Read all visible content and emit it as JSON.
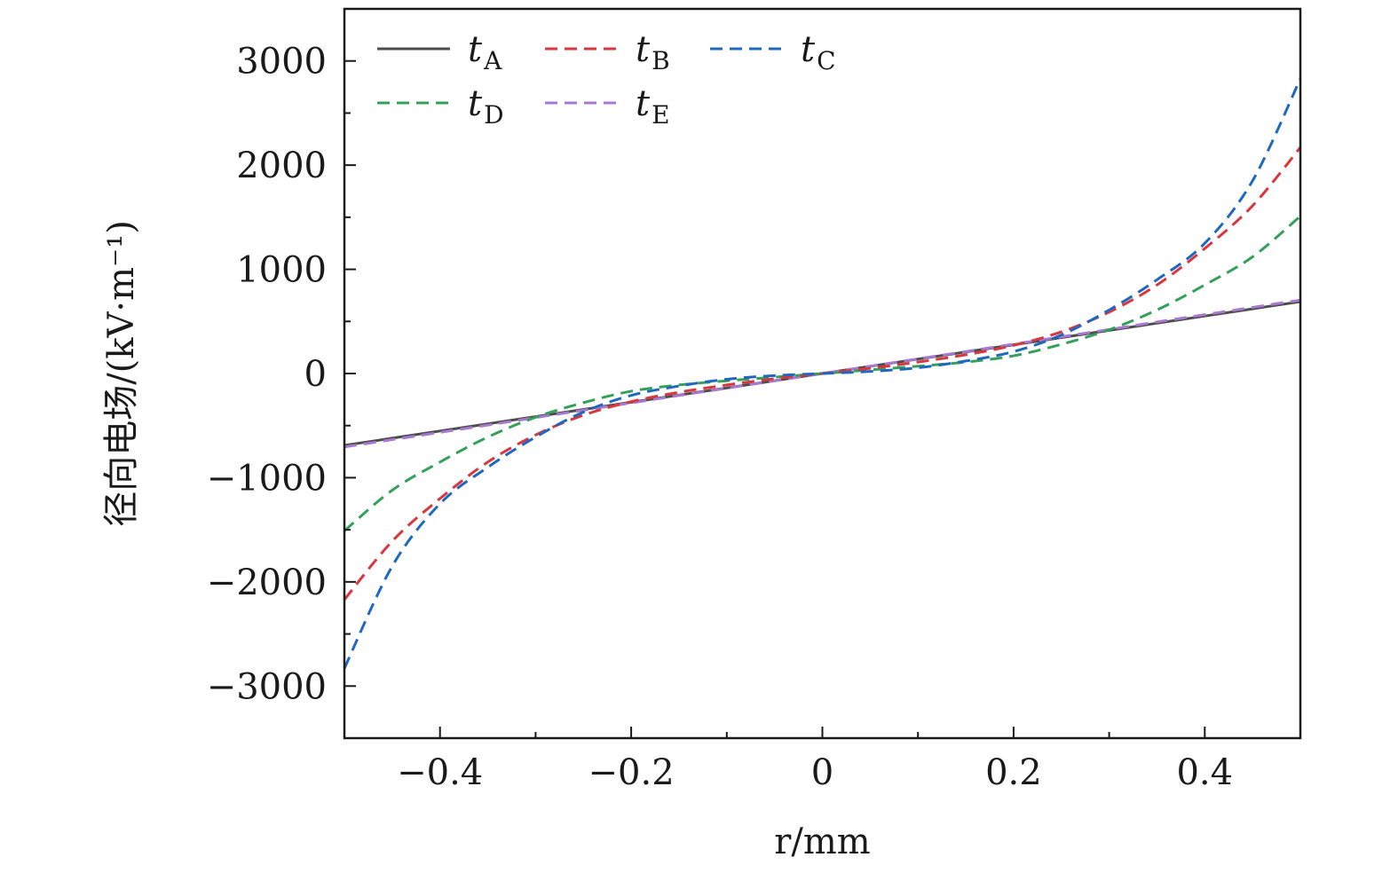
{
  "chart_data": {
    "type": "line",
    "title": "",
    "xlabel": "r/mm",
    "ylabel": "径向电场/(kV·m⁻¹)",
    "xlim": [
      -0.5,
      0.5
    ],
    "ylim": [
      -3500,
      3500
    ],
    "xticks": [
      -0.4,
      -0.2,
      0,
      0.2,
      0.4
    ],
    "xtick_labels": [
      "−0.4",
      "−0.2",
      "0",
      "0.2",
      "0.4"
    ],
    "yticks": [
      -3000,
      -2000,
      -1000,
      0,
      1000,
      2000,
      3000
    ],
    "ytick_labels": [
      "−3000",
      "−2000",
      "−1000",
      "0",
      "1000",
      "2000",
      "3000"
    ],
    "grid": false,
    "legend_position": "top-left",
    "x": [
      -0.5,
      -0.45,
      -0.4,
      -0.35,
      -0.3,
      -0.25,
      -0.2,
      -0.15,
      -0.1,
      -0.05,
      0,
      0.05,
      0.1,
      0.15,
      0.2,
      0.25,
      0.3,
      0.35,
      0.4,
      0.45,
      0.5
    ],
    "series": [
      {
        "name": "t",
        "subscript": "A",
        "color": "#4d4d4d",
        "dash": "solid",
        "values": [
          -690,
          -621,
          -552,
          -483,
          -414,
          -345,
          -276,
          -207,
          -138,
          -69,
          0,
          69,
          138,
          207,
          276,
          345,
          414,
          483,
          552,
          621,
          690
        ]
      },
      {
        "name": "t",
        "subscript": "B",
        "color": "#d9363e",
        "dash": "dashed",
        "values": [
          -2170,
          -1610,
          -1200,
          -850,
          -590,
          -400,
          -270,
          -180,
          -110,
          -50,
          0,
          50,
          110,
          180,
          270,
          400,
          590,
          850,
          1200,
          1610,
          2170
        ]
      },
      {
        "name": "t",
        "subscript": "C",
        "color": "#1f68c1",
        "dash": "dashed",
        "values": [
          -2830,
          -1850,
          -1250,
          -900,
          -610,
          -370,
          -210,
          -120,
          -55,
          -20,
          0,
          20,
          55,
          120,
          210,
          370,
          610,
          900,
          1250,
          1850,
          2830
        ]
      },
      {
        "name": "t",
        "subscript": "D",
        "color": "#34a05a",
        "dash": "dashed",
        "values": [
          -1510,
          -1120,
          -850,
          -610,
          -420,
          -280,
          -170,
          -110,
          -70,
          -35,
          0,
          35,
          70,
          110,
          170,
          280,
          420,
          610,
          850,
          1120,
          1510
        ]
      },
      {
        "name": "t",
        "subscript": "E",
        "color": "#a779d1",
        "dash": "dashed",
        "values": [
          -705,
          -635,
          -565,
          -495,
          -423,
          -352,
          -282,
          -211,
          -141,
          -70,
          0,
          70,
          141,
          211,
          282,
          352,
          423,
          495,
          565,
          635,
          705
        ]
      }
    ]
  }
}
